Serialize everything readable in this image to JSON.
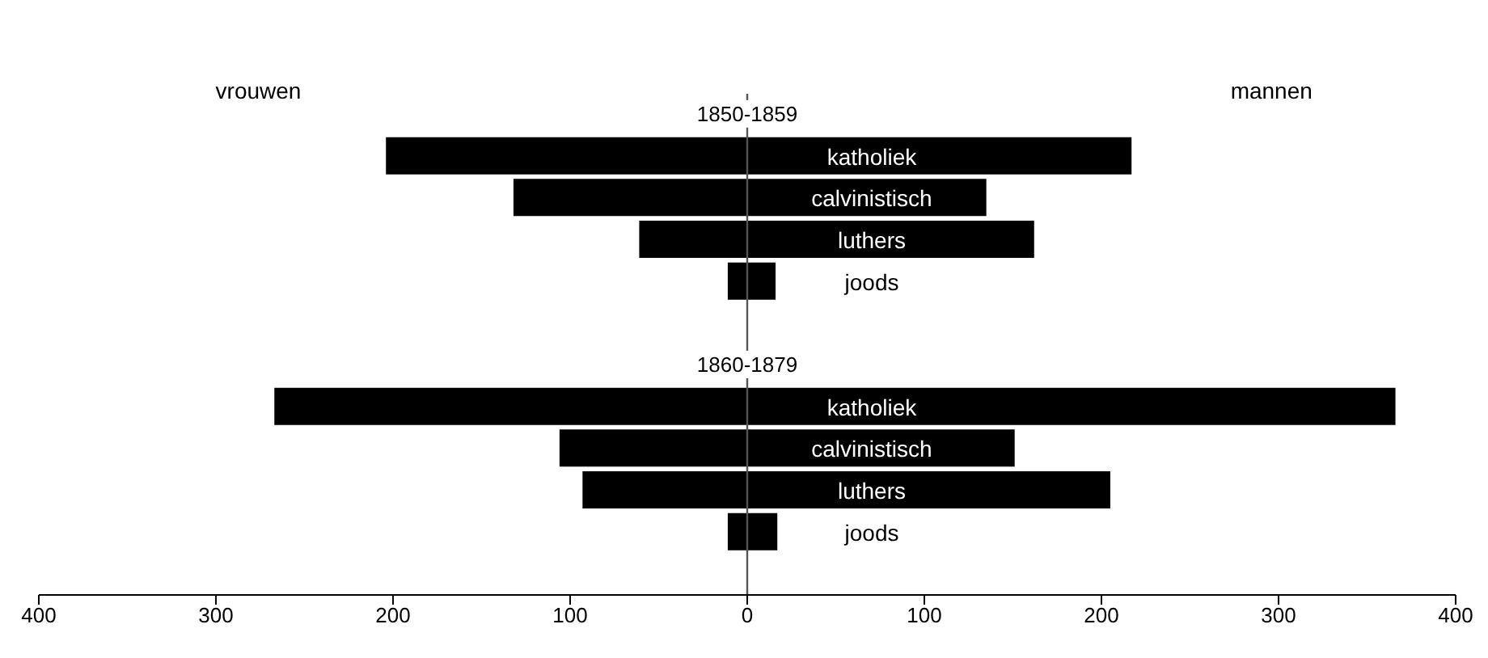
{
  "chart_data": {
    "type": "bar",
    "orientation": "horizontal",
    "stacked": true,
    "categories": [
      null,
      "katholiek",
      "calvinistisch",
      "luthers",
      "joods",
      null,
      null,
      "katholiek",
      "calvinistisch",
      "luthers",
      "joods",
      null
    ],
    "series": [
      {
        "color": "#000000",
        "values": [
          null,
          -204,
          -132,
          -61,
          -11,
          null,
          null,
          -267,
          -106,
          -93,
          -11,
          null
        ]
      },
      {
        "color": "#000000",
        "values": [
          null,
          217,
          135,
          162,
          16,
          null,
          null,
          366,
          151,
          205,
          17,
          null
        ]
      }
    ],
    "annotations": [
      "vrouwen",
      "mannen",
      "1850-1859",
      "1860-1879"
    ],
    "xlim": [
      -400,
      400
    ],
    "xticks": [
      {
        "value": -400,
        "label": "400"
      },
      {
        "value": -300,
        "label": "300"
      },
      {
        "value": -200,
        "label": "200"
      },
      {
        "value": -100,
        "label": "100"
      },
      0,
      100,
      200,
      300,
      400
    ],
    "ref_lines": [
      {
        "axis": "x",
        "value": 0,
        "color": "#555555"
      }
    ],
    "legend": false
  }
}
